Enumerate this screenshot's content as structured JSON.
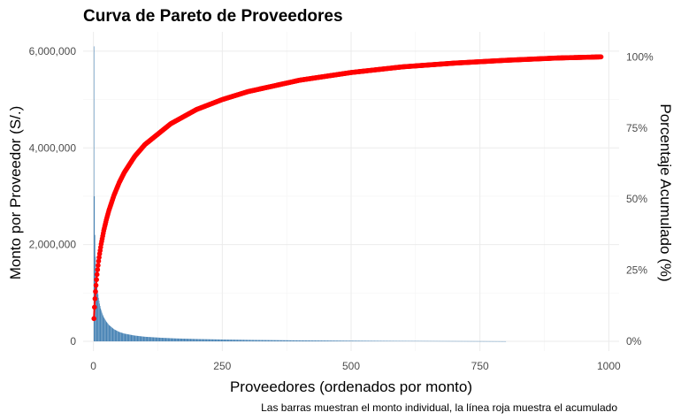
{
  "chart_data": {
    "type": "bar",
    "title": "Curva de Pareto de Proveedores",
    "xlabel": "Proveedores (ordenados por monto)",
    "ylabel": "Monto por Proveedor (S/.)",
    "y2label": "Porcentaje Acumulado (%)",
    "caption": "Las barras muestran el monto individual, la línea roja muestra el acumulado",
    "xlim": [
      -20,
      1020
    ],
    "ylim": [
      -200000,
      6400000
    ],
    "y2lim": [
      -3.4,
      108.8
    ],
    "x_ticks": [
      {
        "value": 0,
        "label": "0"
      },
      {
        "value": 250,
        "label": "250"
      },
      {
        "value": 500,
        "label": "500"
      },
      {
        "value": 750,
        "label": "750"
      },
      {
        "value": 1000,
        "label": "1000"
      }
    ],
    "y_ticks": [
      {
        "value": 0,
        "label": "0"
      },
      {
        "value": 2000000,
        "label": "2,000,000"
      },
      {
        "value": 4000000,
        "label": "4,000,000"
      },
      {
        "value": 6000000,
        "label": "6,000,000"
      }
    ],
    "y2_ticks": [
      {
        "value": 0,
        "label": "0%"
      },
      {
        "value": 25,
        "label": "25%"
      },
      {
        "value": 50,
        "label": "50%"
      },
      {
        "value": 75,
        "label": "75%"
      },
      {
        "value": 100,
        "label": "100%"
      }
    ],
    "grid": true,
    "bar_color": "#4682b4",
    "line_color": "#ff0000",
    "bars": {
      "x": [
        1,
        2,
        3,
        4,
        5,
        6,
        7,
        8,
        10,
        12,
        14,
        17,
        20,
        25,
        30,
        40,
        50,
        60,
        80,
        100,
        130,
        160,
        200,
        250,
        300,
        400,
        500,
        600,
        700,
        800
      ],
      "values": [
        6100000,
        3000000,
        2200000,
        1750000,
        1500000,
        1300000,
        1150000,
        1050000,
        900000,
        780000,
        680000,
        580000,
        500000,
        410000,
        340000,
        250000,
        195000,
        160000,
        120000,
        95000,
        75000,
        60000,
        48000,
        38000,
        30000,
        20000,
        13000,
        8000,
        5000,
        2000
      ]
    },
    "cumulative": {
      "x": [
        1,
        2,
        3,
        4,
        5,
        6,
        7,
        8,
        10,
        12,
        15,
        20,
        25,
        30,
        40,
        50,
        60,
        80,
        100,
        150,
        200,
        250,
        300,
        400,
        500,
        600,
        700,
        800,
        900,
        985
      ],
      "percent": [
        8.0,
        12.0,
        15.0,
        17.5,
        19.7,
        21.7,
        23.5,
        25.2,
        28.2,
        30.8,
        34.2,
        38.9,
        42.7,
        46.0,
        51.4,
        55.8,
        59.4,
        65.0,
        69.2,
        76.5,
        81.5,
        85.0,
        87.8,
        91.8,
        94.5,
        96.5,
        97.8,
        98.8,
        99.6,
        100.0
      ]
    }
  }
}
